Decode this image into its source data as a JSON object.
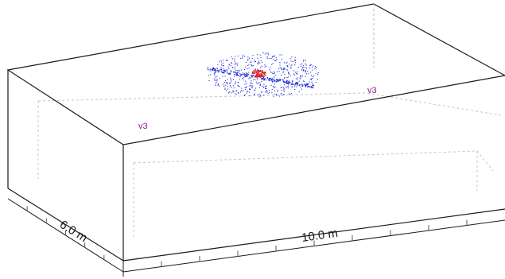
{
  "labels": {
    "depth": "6.0 m",
    "width": "10.0 m",
    "vertex_left": "v3",
    "vertex_right": "v3"
  },
  "colors": {
    "frame": "#1a1a1a",
    "inner_dashed": "#b8b8b8",
    "tick": "#2e7d32",
    "label_vertex": "#8e1b8e",
    "cloud_blue": "#1f2fd6",
    "cloud_red": "#e0201a"
  },
  "icons": {
    "point_cloud": "scatter-cloud-icon"
  }
}
